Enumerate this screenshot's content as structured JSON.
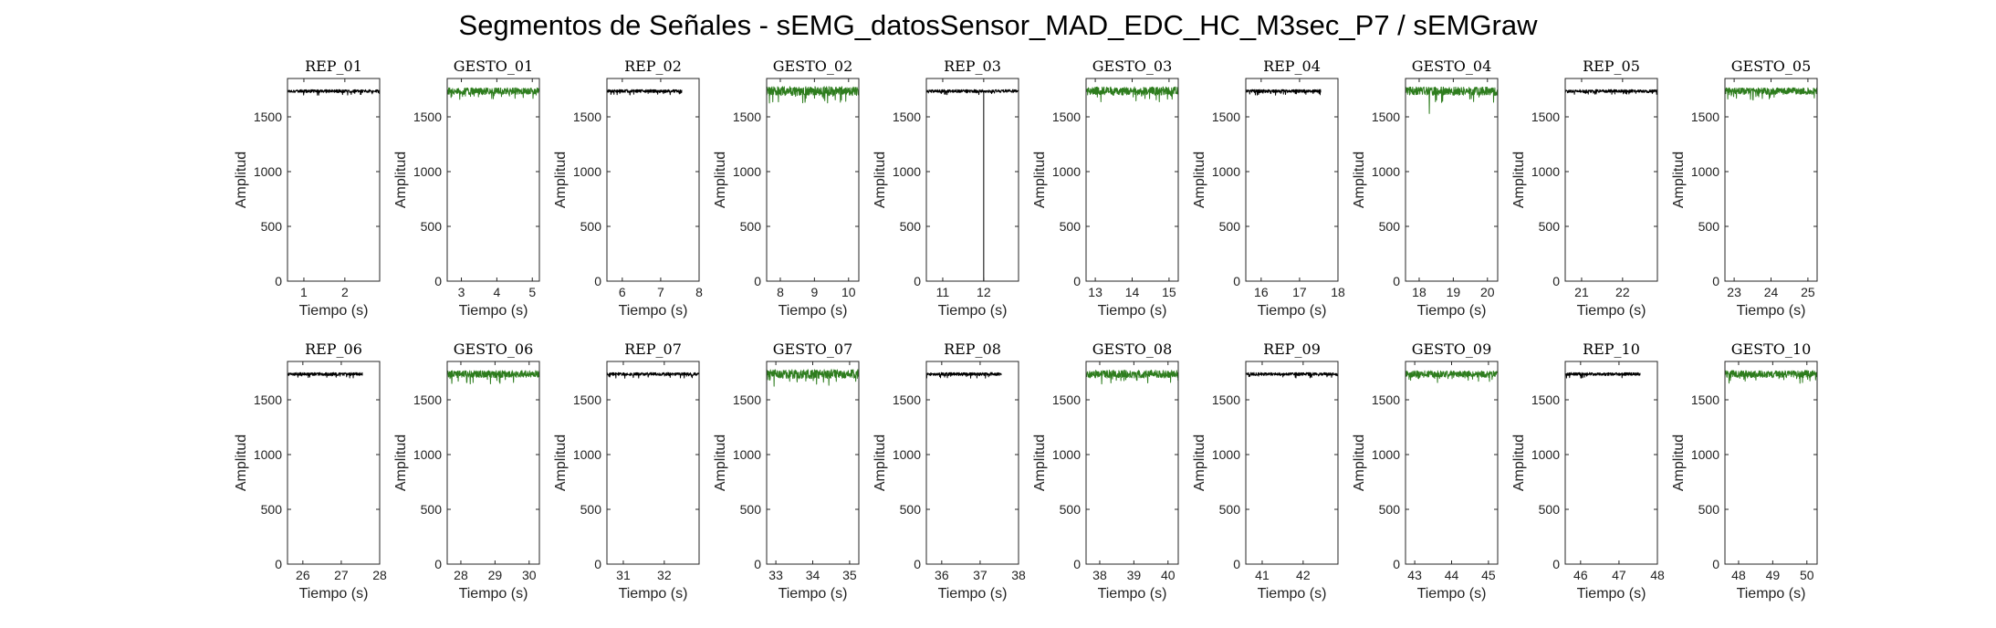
{
  "figure": {
    "title": "Segmentos de Señales - sEMG_datosSensor_MAD_EDC_HC_M3sec_P7 / sEMGraw",
    "colors": {
      "rep": "#000000",
      "gesto": "#2e7d1e",
      "axis": "#262626"
    }
  },
  "chart_data": [
    {
      "type": "line",
      "title": "REP_01",
      "xlabel": "Tiempo (s)",
      "ylabel": "Amplitud",
      "x_range": [
        0.6,
        2.85
      ],
      "xlim": [
        0.6,
        2.85
      ],
      "ylim": [
        0,
        1850
      ],
      "xticks": [
        1,
        2
      ],
      "yticks": [
        0,
        500,
        1000,
        1500
      ],
      "series": [
        {
          "name": "REP_01",
          "color": "#000000",
          "baseline": 1735,
          "amplitude": 25
        }
      ]
    },
    {
      "type": "line",
      "title": "GESTO_01",
      "xlabel": "Tiempo (s)",
      "ylabel": "Amplitud",
      "x_range": [
        2.6,
        5.2
      ],
      "xlim": [
        2.6,
        5.2
      ],
      "ylim": [
        0,
        1850
      ],
      "xticks": [
        3,
        4,
        5
      ],
      "yticks": [
        0,
        500,
        1000,
        1500
      ],
      "series": [
        {
          "name": "GESTO_01",
          "color": "#2e7d1e",
          "baseline": 1735,
          "amplitude": 55
        }
      ]
    },
    {
      "type": "line",
      "title": "REP_02",
      "xlabel": "Tiempo (s)",
      "ylabel": "Amplitud",
      "x_range": [
        5.6,
        7.55
      ],
      "xlim": [
        5.6,
        8.0
      ],
      "ylim": [
        0,
        1850
      ],
      "xticks": [
        6,
        7,
        8
      ],
      "yticks": [
        0,
        500,
        1000,
        1500
      ],
      "series": [
        {
          "name": "REP_02",
          "color": "#000000",
          "baseline": 1735,
          "amplitude": 25
        }
      ]
    },
    {
      "type": "line",
      "title": "GESTO_02",
      "xlabel": "Tiempo (s)",
      "ylabel": "Amplitud",
      "x_range": [
        7.6,
        10.3
      ],
      "xlim": [
        7.6,
        10.3
      ],
      "ylim": [
        0,
        1850
      ],
      "xticks": [
        8,
        9,
        10
      ],
      "yticks": [
        0,
        500,
        1000,
        1500
      ],
      "series": [
        {
          "name": "GESTO_02",
          "color": "#2e7d1e",
          "baseline": 1735,
          "amplitude": 75
        }
      ]
    },
    {
      "type": "line",
      "title": "REP_03",
      "xlabel": "Tiempo (s)",
      "ylabel": "Amplitud",
      "x_range": [
        10.6,
        12.85
      ],
      "xlim": [
        10.6,
        12.85
      ],
      "ylim": [
        0,
        1850
      ],
      "xticks": [
        11,
        12
      ],
      "yticks": [
        0,
        500,
        1000,
        1500
      ],
      "series": [
        {
          "name": "REP_03",
          "color": "#000000",
          "baseline": 1735,
          "amplitude": 25,
          "spike_x": 12.0,
          "spike_y": 0
        }
      ]
    },
    {
      "type": "line",
      "title": "GESTO_03",
      "xlabel": "Tiempo (s)",
      "ylabel": "Amplitud",
      "x_range": [
        12.75,
        15.25
      ],
      "xlim": [
        12.75,
        15.25
      ],
      "ylim": [
        0,
        1850
      ],
      "xticks": [
        13,
        14,
        15
      ],
      "yticks": [
        0,
        500,
        1000,
        1500
      ],
      "series": [
        {
          "name": "GESTO_03",
          "color": "#2e7d1e",
          "baseline": 1735,
          "amplitude": 70
        }
      ]
    },
    {
      "type": "line",
      "title": "REP_04",
      "xlabel": "Tiempo (s)",
      "ylabel": "Amplitud",
      "x_range": [
        15.6,
        17.55
      ],
      "xlim": [
        15.6,
        18.0
      ],
      "ylim": [
        0,
        1850
      ],
      "xticks": [
        16,
        17,
        18
      ],
      "yticks": [
        0,
        500,
        1000,
        1500
      ],
      "series": [
        {
          "name": "REP_04",
          "color": "#000000",
          "baseline": 1735,
          "amplitude": 25
        }
      ]
    },
    {
      "type": "line",
      "title": "GESTO_04",
      "xlabel": "Tiempo (s)",
      "ylabel": "Amplitud",
      "x_range": [
        17.6,
        20.3
      ],
      "xlim": [
        17.6,
        20.3
      ],
      "ylim": [
        0,
        1850
      ],
      "xticks": [
        18,
        19,
        20
      ],
      "yticks": [
        0,
        500,
        1000,
        1500
      ],
      "series": [
        {
          "name": "GESTO_04",
          "color": "#2e7d1e",
          "baseline": 1735,
          "amplitude": 70,
          "dip_x": 18.3,
          "dip_y": 1530
        }
      ]
    },
    {
      "type": "line",
      "title": "REP_05",
      "xlabel": "Tiempo (s)",
      "ylabel": "Amplitud",
      "x_range": [
        20.6,
        22.85
      ],
      "xlim": [
        20.6,
        22.85
      ],
      "ylim": [
        0,
        1850
      ],
      "xticks": [
        21,
        22
      ],
      "yticks": [
        0,
        500,
        1000,
        1500
      ],
      "series": [
        {
          "name": "REP_05",
          "color": "#000000",
          "baseline": 1735,
          "amplitude": 25
        }
      ]
    },
    {
      "type": "line",
      "title": "GESTO_05",
      "xlabel": "Tiempo (s)",
      "ylabel": "Amplitud",
      "x_range": [
        22.75,
        25.25
      ],
      "xlim": [
        22.75,
        25.25
      ],
      "ylim": [
        0,
        1850
      ],
      "xticks": [
        23,
        24,
        25
      ],
      "yticks": [
        0,
        500,
        1000,
        1500
      ],
      "series": [
        {
          "name": "GESTO_05",
          "color": "#2e7d1e",
          "baseline": 1735,
          "amplitude": 55
        }
      ]
    },
    {
      "type": "line",
      "title": "REP_06",
      "xlabel": "Tiempo (s)",
      "ylabel": "Amplitud",
      "x_range": [
        25.6,
        27.55
      ],
      "xlim": [
        25.6,
        28.0
      ],
      "ylim": [
        0,
        1850
      ],
      "xticks": [
        26,
        27,
        28
      ],
      "yticks": [
        0,
        500,
        1000,
        1500
      ],
      "series": [
        {
          "name": "REP_06",
          "color": "#000000",
          "baseline": 1735,
          "amplitude": 25
        }
      ]
    },
    {
      "type": "line",
      "title": "GESTO_06",
      "xlabel": "Tiempo (s)",
      "ylabel": "Amplitud",
      "x_range": [
        27.6,
        30.3
      ],
      "xlim": [
        27.6,
        30.3
      ],
      "ylim": [
        0,
        1850
      ],
      "xticks": [
        28,
        29,
        30
      ],
      "yticks": [
        0,
        500,
        1000,
        1500
      ],
      "series": [
        {
          "name": "GESTO_06",
          "color": "#2e7d1e",
          "baseline": 1735,
          "amplitude": 60
        }
      ]
    },
    {
      "type": "line",
      "title": "REP_07",
      "xlabel": "Tiempo (s)",
      "ylabel": "Amplitud",
      "x_range": [
        30.6,
        32.85
      ],
      "xlim": [
        30.6,
        32.85
      ],
      "ylim": [
        0,
        1850
      ],
      "xticks": [
        31,
        32
      ],
      "yticks": [
        0,
        500,
        1000,
        1500
      ],
      "series": [
        {
          "name": "REP_07",
          "color": "#000000",
          "baseline": 1735,
          "amplitude": 25
        }
      ]
    },
    {
      "type": "line",
      "title": "GESTO_07",
      "xlabel": "Tiempo (s)",
      "ylabel": "Amplitud",
      "x_range": [
        32.75,
        35.25
      ],
      "xlim": [
        32.75,
        35.25
      ],
      "ylim": [
        0,
        1850
      ],
      "xticks": [
        33,
        34,
        35
      ],
      "yticks": [
        0,
        500,
        1000,
        1500
      ],
      "series": [
        {
          "name": "GESTO_07",
          "color": "#2e7d1e",
          "baseline": 1735,
          "amplitude": 75
        }
      ]
    },
    {
      "type": "line",
      "title": "REP_08",
      "xlabel": "Tiempo (s)",
      "ylabel": "Amplitud",
      "x_range": [
        35.6,
        37.55
      ],
      "xlim": [
        35.6,
        38.0
      ],
      "ylim": [
        0,
        1850
      ],
      "xticks": [
        36,
        37,
        38
      ],
      "yticks": [
        0,
        500,
        1000,
        1500
      ],
      "series": [
        {
          "name": "REP_08",
          "color": "#000000",
          "baseline": 1735,
          "amplitude": 25
        }
      ]
    },
    {
      "type": "line",
      "title": "GESTO_08",
      "xlabel": "Tiempo (s)",
      "ylabel": "Amplitud",
      "x_range": [
        37.6,
        40.3
      ],
      "xlim": [
        37.6,
        40.3
      ],
      "ylim": [
        0,
        1850
      ],
      "xticks": [
        38,
        39,
        40
      ],
      "yticks": [
        0,
        500,
        1000,
        1500
      ],
      "series": [
        {
          "name": "GESTO_08",
          "color": "#2e7d1e",
          "baseline": 1735,
          "amplitude": 65
        }
      ]
    },
    {
      "type": "line",
      "title": "REP_09",
      "xlabel": "Tiempo (s)",
      "ylabel": "Amplitud",
      "x_range": [
        40.6,
        42.85
      ],
      "xlim": [
        40.6,
        42.85
      ],
      "ylim": [
        0,
        1850
      ],
      "xticks": [
        41,
        42
      ],
      "yticks": [
        0,
        500,
        1000,
        1500
      ],
      "series": [
        {
          "name": "REP_09",
          "color": "#000000",
          "baseline": 1735,
          "amplitude": 25
        }
      ]
    },
    {
      "type": "line",
      "title": "GESTO_09",
      "xlabel": "Tiempo (s)",
      "ylabel": "Amplitud",
      "x_range": [
        42.75,
        45.25
      ],
      "xlim": [
        42.75,
        45.25
      ],
      "ylim": [
        0,
        1850
      ],
      "xticks": [
        43,
        44,
        45
      ],
      "yticks": [
        0,
        500,
        1000,
        1500
      ],
      "series": [
        {
          "name": "GESTO_09",
          "color": "#2e7d1e",
          "baseline": 1735,
          "amplitude": 55
        }
      ]
    },
    {
      "type": "line",
      "title": "REP_10",
      "xlabel": "Tiempo (s)",
      "ylabel": "Amplitud",
      "x_range": [
        45.6,
        47.55
      ],
      "xlim": [
        45.6,
        48.0
      ],
      "ylim": [
        0,
        1850
      ],
      "xticks": [
        46,
        47,
        48
      ],
      "yticks": [
        0,
        500,
        1000,
        1500
      ],
      "series": [
        {
          "name": "REP_10",
          "color": "#000000",
          "baseline": 1735,
          "amplitude": 25
        }
      ]
    },
    {
      "type": "line",
      "title": "GESTO_10",
      "xlabel": "Tiempo (s)",
      "ylabel": "Amplitud",
      "x_range": [
        47.6,
        50.3
      ],
      "xlim": [
        47.6,
        50.3
      ],
      "ylim": [
        0,
        1850
      ],
      "xticks": [
        48,
        49,
        50
      ],
      "yticks": [
        0,
        500,
        1000,
        1500
      ],
      "series": [
        {
          "name": "GESTO_10",
          "color": "#2e7d1e",
          "baseline": 1735,
          "amplitude": 60
        }
      ]
    }
  ]
}
